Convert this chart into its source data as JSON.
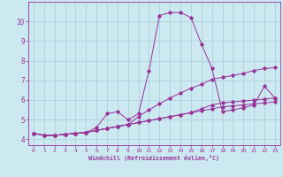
{
  "xlabel": "Windchill (Refroidissement éolien,°C)",
  "background_color": "#cce8f0",
  "grid_color": "#aaccd8",
  "line_color": "#993399",
  "xlim": [
    -0.5,
    23.5
  ],
  "ylim": [
    3.7,
    11.0
  ],
  "yticks": [
    4,
    5,
    6,
    7,
    8,
    9,
    10
  ],
  "xticks": [
    0,
    1,
    2,
    3,
    4,
    5,
    6,
    7,
    8,
    9,
    10,
    11,
    12,
    13,
    14,
    15,
    16,
    17,
    18,
    19,
    20,
    21,
    22,
    23
  ],
  "s1_x": [
    0,
    1,
    2,
    3,
    4,
    5,
    6,
    7,
    8,
    9,
    10,
    11,
    12,
    13,
    14,
    15,
    16,
    17,
    18,
    19,
    20,
    21,
    22,
    23
  ],
  "s1_y": [
    4.3,
    4.2,
    4.2,
    4.25,
    4.3,
    4.35,
    4.45,
    4.55,
    4.65,
    4.75,
    4.85,
    4.95,
    5.05,
    5.15,
    5.25,
    5.35,
    5.45,
    5.55,
    5.65,
    5.7,
    5.75,
    5.8,
    5.85,
    5.9
  ],
  "s2_x": [
    0,
    1,
    2,
    3,
    4,
    5,
    6,
    7,
    8,
    9,
    10,
    11,
    12,
    13,
    14,
    15,
    16,
    17,
    18,
    19,
    20,
    21,
    22,
    23
  ],
  "s2_y": [
    4.3,
    4.2,
    4.2,
    4.25,
    4.3,
    4.35,
    4.6,
    5.3,
    5.4,
    5.0,
    5.3,
    7.5,
    10.3,
    10.45,
    10.45,
    10.2,
    8.85,
    7.6,
    5.4,
    5.5,
    5.6,
    5.75,
    6.7,
    6.1
  ],
  "s3_x": [
    0,
    1,
    2,
    3,
    4,
    5,
    6,
    7,
    8,
    9,
    10,
    11,
    12,
    13,
    14,
    15,
    16,
    17,
    18,
    19,
    20,
    21,
    22,
    23
  ],
  "s3_y": [
    4.3,
    4.2,
    4.2,
    4.25,
    4.3,
    4.35,
    4.45,
    4.55,
    4.65,
    4.75,
    5.15,
    5.5,
    5.8,
    6.1,
    6.35,
    6.6,
    6.8,
    7.05,
    7.15,
    7.25,
    7.35,
    7.5,
    7.6,
    7.65
  ],
  "s4_x": [
    0,
    1,
    2,
    3,
    4,
    5,
    6,
    7,
    8,
    9,
    10,
    11,
    12,
    13,
    14,
    15,
    16,
    17,
    18,
    19,
    20,
    21,
    22,
    23
  ],
  "s4_y": [
    4.3,
    4.2,
    4.2,
    4.25,
    4.3,
    4.35,
    4.45,
    4.55,
    4.65,
    4.75,
    4.85,
    4.95,
    5.05,
    5.15,
    5.25,
    5.35,
    5.55,
    5.75,
    5.85,
    5.9,
    5.95,
    6.0,
    6.05,
    6.1
  ]
}
